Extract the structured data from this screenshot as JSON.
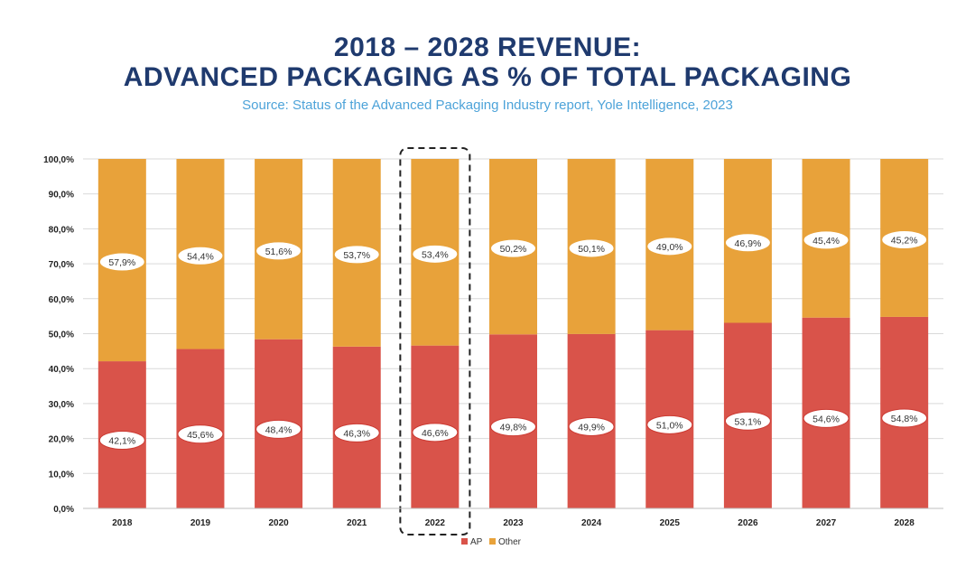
{
  "title_line1": "2018 – 2028 REVENUE:",
  "title_line2": "ADVANCED PACKAGING AS % OF TOTAL PACKAGING",
  "subtitle": "Source: Status of the Advanced Packaging Industry report, Yole Intelligence, 2023",
  "colors": {
    "ap": "#d9534a",
    "other": "#e8a23a",
    "title": "#1f3a6e",
    "subtitle": "#4da3d9"
  },
  "chart_data": {
    "type": "bar",
    "stacked": true,
    "categories": [
      "2018",
      "2019",
      "2020",
      "2021",
      "2022",
      "2023",
      "2024",
      "2025",
      "2026",
      "2027",
      "2028"
    ],
    "series": [
      {
        "name": "AP",
        "values": [
          42.1,
          45.6,
          48.4,
          46.3,
          46.6,
          49.8,
          49.9,
          51.0,
          53.1,
          54.6,
          54.8
        ],
        "labels": [
          "42,1%",
          "45,6%",
          "48,4%",
          "46,3%",
          "46,6%",
          "49,8%",
          "49,9%",
          "51,0%",
          "53,1%",
          "54,6%",
          "54,8%"
        ]
      },
      {
        "name": "Other",
        "values": [
          57.9,
          54.4,
          51.6,
          53.7,
          53.4,
          50.2,
          50.1,
          49.0,
          46.9,
          45.4,
          45.2
        ],
        "labels": [
          "57,9%",
          "54,4%",
          "51,6%",
          "53,7%",
          "53,4%",
          "50,2%",
          "50,1%",
          "49,0%",
          "46,9%",
          "45,4%",
          "45,2%"
        ]
      }
    ],
    "yticks": [
      "0,0%",
      "10,0%",
      "20,0%",
      "30,0%",
      "40,0%",
      "50,0%",
      "60,0%",
      "70,0%",
      "80,0%",
      "90,0%",
      "100,0%"
    ],
    "ylim": [
      0,
      100
    ],
    "highlighted_category": "2022",
    "legend": [
      "AP",
      "Other"
    ],
    "legend_position": "bottom",
    "grid": true
  }
}
